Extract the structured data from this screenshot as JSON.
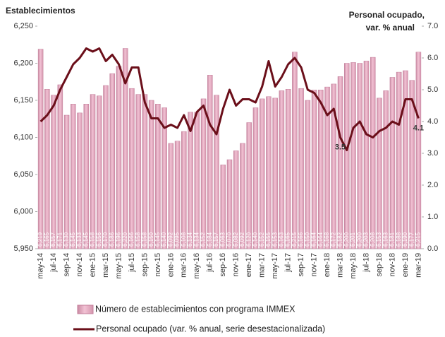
{
  "chart_data": {
    "type": "bar_line",
    "y_title": "Establecimientos",
    "y2_title": [
      "Personal ocupado,",
      "var. % anual"
    ],
    "categories": [
      "may-14",
      null,
      "jul-14",
      null,
      "sep-14",
      null,
      "nov-14",
      null,
      "ene-15",
      null,
      "mar-15",
      null,
      "may-15",
      null,
      "jul-15",
      null,
      "sep-15",
      null,
      "nov-15",
      null,
      "ene-16",
      null,
      "mar-16",
      null,
      "may-16",
      null,
      "jul-16",
      null,
      "sep-16",
      null,
      "nov-16",
      null,
      "ene-17",
      null,
      "mar-17",
      null,
      "may-17",
      null,
      "jul-17",
      null,
      "sep-17",
      null,
      "nov-17",
      null,
      "ene-18",
      null,
      "mar-18",
      null,
      "may-18",
      null,
      "jul-18",
      null,
      "sep-18",
      null,
      "nov-18",
      null,
      "ene-19",
      null,
      "mar-19"
    ],
    "series": [
      {
        "name": "Número de establecimientos con programa IMMEX",
        "type": "bar",
        "color": "#e8a7c0",
        "values": [
          6219,
          6165,
          6157,
          6171,
          6130,
          6145,
          6133,
          6145,
          6158,
          6156,
          6170,
          6186,
          6196,
          6220,
          6166,
          6158,
          6158,
          6150,
          6145,
          6140,
          6092,
          6095,
          6108,
          6134,
          6134,
          6152,
          6184,
          6157,
          6063,
          6070,
          6082,
          6092,
          6120,
          6140,
          6152,
          6155,
          6153,
          6163,
          6165,
          6215,
          6166,
          6150,
          6164,
          6164,
          6168,
          6172,
          6182,
          6200,
          6201,
          6200,
          6203,
          6208,
          6153,
          6163,
          6181,
          6188,
          6190,
          6177,
          6215
        ],
        "value_labels": [
          "6,219",
          "6,165",
          "6,157",
          "6,171",
          "6,130",
          "6,145",
          "6,133",
          "6,145",
          "6,158",
          "6,156",
          "6,170",
          "6,186",
          "6,196",
          "6,220",
          "6,166",
          "6,158",
          "6,158",
          "6,150",
          "6,145",
          "6,140",
          "6,092",
          "6,095",
          "6,108",
          "6,134",
          "6,134",
          "6,152",
          "6,184",
          "6,157",
          "6,063",
          "6,070",
          "6,082",
          "6,092",
          "6,120",
          "6,140",
          "6,152",
          "6,155",
          "6,153",
          "6,163",
          "6,165",
          "6,215",
          "6,166",
          "6,150",
          "6,164",
          "6,164",
          "6,168",
          "6,172",
          "6,182",
          "6,200",
          "6,201",
          "6,200",
          "6,203",
          "6,208",
          "6,153",
          "6,163",
          "6,181",
          "6,188",
          "6,190",
          "6,177",
          "6,215"
        ]
      },
      {
        "name": "Personal ocupado (var. % anual, serie desestacionalizada)",
        "type": "line",
        "axis": "y2",
        "color": "#6b0f1a",
        "values": [
          4.0,
          4.2,
          4.5,
          5.0,
          5.4,
          5.8,
          6.0,
          6.3,
          6.2,
          6.3,
          5.9,
          6.1,
          5.8,
          5.2,
          5.7,
          5.7,
          4.6,
          4.1,
          4.1,
          3.8,
          3.9,
          3.8,
          4.2,
          3.7,
          4.3,
          4.5,
          3.9,
          3.6,
          4.4,
          5.0,
          4.5,
          4.7,
          4.7,
          4.6,
          5.1,
          5.9,
          5.1,
          5.4,
          5.8,
          6.0,
          5.7,
          5.0,
          4.9,
          4.6,
          4.2,
          4.4,
          3.5,
          3.1,
          3.8,
          4.0,
          3.6,
          3.5,
          3.7,
          3.8,
          4.0,
          3.9,
          4.7,
          4.7,
          4.1
        ],
        "value_labels": [
          null,
          null,
          null,
          null,
          null,
          null,
          null,
          null,
          null,
          null,
          null,
          null,
          null,
          null,
          null,
          null,
          null,
          null,
          null,
          null,
          null,
          null,
          null,
          null,
          null,
          null,
          null,
          null,
          null,
          null,
          null,
          null,
          null,
          null,
          null,
          null,
          null,
          null,
          null,
          null,
          null,
          null,
          null,
          null,
          null,
          null,
          "3.5",
          null,
          null,
          null,
          null,
          null,
          null,
          null,
          null,
          null,
          null,
          null,
          "4.1"
        ]
      }
    ],
    "ylim": [
      5950,
      6250
    ],
    "yticks": [
      {
        "value": 5950,
        "label": "5,950"
      },
      {
        "value": 6000,
        "label": "6,000"
      },
      {
        "value": 6050,
        "label": "6,050"
      },
      {
        "value": 6100,
        "label": "6,100"
      },
      {
        "value": 6150,
        "label": "6,150"
      },
      {
        "value": 6200,
        "label": "6,200"
      },
      {
        "value": 6250,
        "label": "6,250"
      }
    ],
    "y2lim": [
      0,
      7
    ],
    "y2ticks": [
      {
        "value": 0,
        "label": "0.0"
      },
      {
        "value": 1,
        "label": "1.0"
      },
      {
        "value": 2,
        "label": "2.0"
      },
      {
        "value": 3,
        "label": "3.0"
      },
      {
        "value": 4,
        "label": "4.0"
      },
      {
        "value": 5,
        "label": "5.0"
      },
      {
        "value": 6,
        "label": "6.0"
      },
      {
        "value": 7,
        "label": "7.0"
      }
    ],
    "grid": false
  }
}
